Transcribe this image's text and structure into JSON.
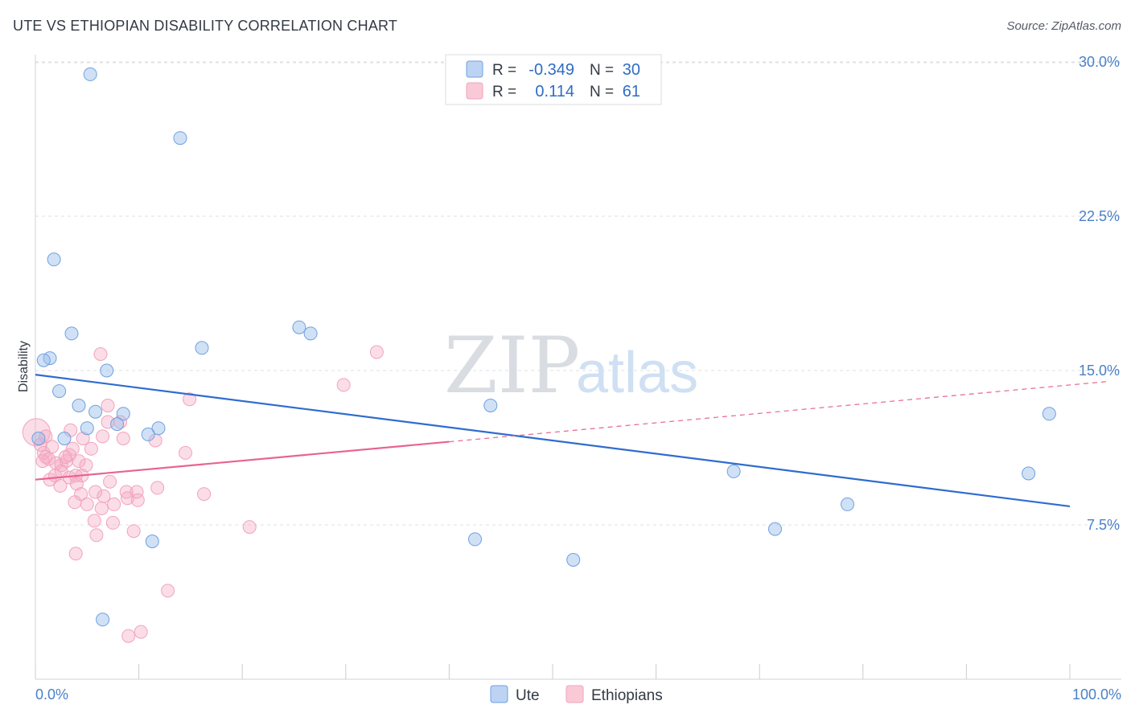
{
  "title": "UTE VS ETHIOPIAN DISABILITY CORRELATION CHART",
  "source": "Source: ZipAtlas.com",
  "watermark": {
    "zip": "ZIP",
    "atlas": "atlas"
  },
  "chart_data": {
    "type": "scatter",
    "title": "UTE VS ETHIOPIAN DISABILITY CORRELATION CHART",
    "xlabel": "",
    "ylabel": "Disability",
    "xlim": [
      0,
      100
    ],
    "ylim": [
      0,
      31
    ],
    "x_tick_labels": [
      "0.0%",
      "100.0%"
    ],
    "y_ticks": [
      7.5,
      15.0,
      22.5,
      30.0
    ],
    "y_tick_labels": [
      "7.5%",
      "15.0%",
      "22.5%",
      "30.0%"
    ],
    "grid": true,
    "legend_position": "top-center",
    "series": [
      {
        "name": "Ute",
        "color": "#6fa0e0",
        "line_color": "#2f6ccf",
        "r_label": "R =",
        "r_value": "-0.349",
        "n_label": "N =",
        "n_value": "30",
        "trend": {
          "x0": 0,
          "y0": 14.8,
          "x1": 100,
          "y1": 8.4,
          "dashed_from": null
        },
        "points": [
          [
            5.3,
            29.4
          ],
          [
            14.0,
            26.3
          ],
          [
            1.8,
            20.4
          ],
          [
            3.5,
            16.8
          ],
          [
            6.9,
            15.0
          ],
          [
            1.4,
            15.6
          ],
          [
            0.8,
            15.5
          ],
          [
            16.1,
            16.1
          ],
          [
            25.5,
            17.1
          ],
          [
            26.6,
            16.8
          ],
          [
            2.3,
            14.0
          ],
          [
            4.2,
            13.3
          ],
          [
            5.8,
            13.0
          ],
          [
            8.5,
            12.9
          ],
          [
            7.9,
            12.4
          ],
          [
            5.0,
            12.2
          ],
          [
            11.9,
            12.2
          ],
          [
            10.9,
            11.9
          ],
          [
            2.8,
            11.7
          ],
          [
            0.3,
            11.7
          ],
          [
            44.0,
            13.3
          ],
          [
            67.5,
            10.1
          ],
          [
            98.0,
            12.9
          ],
          [
            96.0,
            10.0
          ],
          [
            78.5,
            8.5
          ],
          [
            71.5,
            7.3
          ],
          [
            42.5,
            6.8
          ],
          [
            52.0,
            5.8
          ],
          [
            11.3,
            6.7
          ],
          [
            6.5,
            2.9
          ]
        ]
      },
      {
        "name": "Ethiopians",
        "color": "#f2a3bc",
        "line_color": "#e8648f",
        "r_label": "R =",
        "r_value": "0.114",
        "n_label": "N =",
        "n_value": "61",
        "trend": {
          "x0": 0,
          "y0": 9.7,
          "x1": 100,
          "y1": 14.3,
          "dashed_from": 40
        },
        "points": [
          [
            0.1,
            12.0
          ],
          [
            0.5,
            11.4
          ],
          [
            0.8,
            11.0
          ],
          [
            1.0,
            10.8
          ],
          [
            1.3,
            10.7
          ],
          [
            0.7,
            10.6
          ],
          [
            1.6,
            11.3
          ],
          [
            2.0,
            10.5
          ],
          [
            2.5,
            10.4
          ],
          [
            3.0,
            10.6
          ],
          [
            3.3,
            10.9
          ],
          [
            3.6,
            11.2
          ],
          [
            4.2,
            10.6
          ],
          [
            4.9,
            10.4
          ],
          [
            1.9,
            9.9
          ],
          [
            2.5,
            10.1
          ],
          [
            3.3,
            9.8
          ],
          [
            3.9,
            9.9
          ],
          [
            4.5,
            9.9
          ],
          [
            1.4,
            9.7
          ],
          [
            4.0,
            9.5
          ],
          [
            2.4,
            9.4
          ],
          [
            5.4,
            11.2
          ],
          [
            6.5,
            11.8
          ],
          [
            4.6,
            11.7
          ],
          [
            7.0,
            12.5
          ],
          [
            8.2,
            12.5
          ],
          [
            7.0,
            13.3
          ],
          [
            3.4,
            12.1
          ],
          [
            8.5,
            11.7
          ],
          [
            11.6,
            11.6
          ],
          [
            6.3,
            15.8
          ],
          [
            14.9,
            13.6
          ],
          [
            29.8,
            14.3
          ],
          [
            33.0,
            15.9
          ],
          [
            14.5,
            11.0
          ],
          [
            4.4,
            9.0
          ],
          [
            5.8,
            9.1
          ],
          [
            6.6,
            8.9
          ],
          [
            7.2,
            9.6
          ],
          [
            8.8,
            9.1
          ],
          [
            9.8,
            9.1
          ],
          [
            8.9,
            8.8
          ],
          [
            9.9,
            8.7
          ],
          [
            11.8,
            9.3
          ],
          [
            16.3,
            9.0
          ],
          [
            3.8,
            8.6
          ],
          [
            5.0,
            8.5
          ],
          [
            7.6,
            8.5
          ],
          [
            6.4,
            8.3
          ],
          [
            5.7,
            7.7
          ],
          [
            7.5,
            7.6
          ],
          [
            9.5,
            7.2
          ],
          [
            5.9,
            7.0
          ],
          [
            20.7,
            7.4
          ],
          [
            3.9,
            6.1
          ],
          [
            12.8,
            4.3
          ],
          [
            9.0,
            2.1
          ],
          [
            10.2,
            2.3
          ],
          [
            1.0,
            11.8
          ],
          [
            2.9,
            10.8
          ]
        ]
      }
    ]
  }
}
